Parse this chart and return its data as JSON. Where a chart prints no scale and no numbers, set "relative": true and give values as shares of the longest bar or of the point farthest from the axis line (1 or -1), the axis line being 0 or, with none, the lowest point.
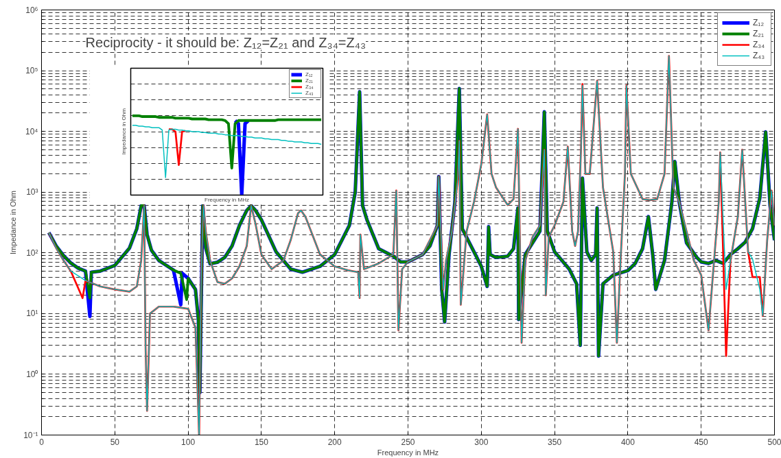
{
  "chart_data": [
    {
      "type": "line",
      "title": "Reciprocity - it should be: Z₁₂=Z₂₁ and Z₃₄=Z₄₃",
      "xlabel": "Frequency in MHz",
      "ylabel": "Impedance in Ohm",
      "log": "y",
      "grid": true,
      "legend": "top right",
      "xlim": [
        0,
        500
      ],
      "xticks": [
        0,
        50,
        100,
        150,
        200,
        250,
        300,
        350,
        400,
        450,
        500
      ],
      "ylim": [
        0.1,
        1000000
      ],
      "yticks": [
        {
          "value": 0.1,
          "label": "10⁻¹"
        },
        {
          "value": 1,
          "label": "10⁰"
        },
        {
          "value": 10,
          "label": "10¹"
        },
        {
          "value": 100,
          "label": "10²"
        },
        {
          "value": 1000,
          "label": "10³"
        },
        {
          "value": 10000,
          "label": "10⁴"
        },
        {
          "value": 100000,
          "label": "10⁵"
        },
        {
          "value": 1000000,
          "label": "10⁶"
        }
      ],
      "series": [
        {
          "name": "Z₁₂",
          "color": "#0000ff",
          "x": [
            5,
            10,
            15,
            20,
            25,
            30,
            33,
            34,
            40,
            50,
            60,
            65,
            68,
            70,
            72,
            75,
            80,
            90,
            95,
            96,
            100,
            105,
            107,
            108,
            109,
            110,
            112,
            115,
            120,
            125,
            130,
            135,
            140,
            143,
            146,
            150,
            160,
            170,
            178,
            190,
            200,
            210,
            214,
            217,
            219,
            222,
            230,
            240,
            245,
            250,
            260,
            265,
            270,
            271,
            273,
            275,
            278,
            282,
            285,
            287,
            295,
            300,
            304,
            305,
            306,
            310,
            318,
            322,
            325,
            325.5,
            330,
            340,
            343,
            345,
            350,
            360,
            365,
            367.5,
            369,
            372,
            375,
            378,
            379,
            380,
            383,
            390,
            400,
            405,
            410,
            414,
            417,
            419,
            425,
            430,
            432,
            435,
            440,
            447,
            450,
            455,
            460,
            465,
            470,
            475,
            480,
            485,
            490,
            494,
            497,
            500
          ],
          "values": [
            215,
            130,
            90,
            68,
            56,
            50,
            9,
            48,
            50,
            62,
            120,
            250,
            600,
            600,
            200,
            110,
            75,
            52,
            14,
            46,
            38,
            25,
            8,
            0.5,
            20,
            600,
            120,
            66,
            70,
            84,
            130,
            283,
            500,
            600,
            500,
            350,
            104,
            54,
            48,
            60,
            94,
            283,
            1000,
            45000,
            600,
            350,
            117,
            88,
            71,
            71,
            94,
            130,
            283,
            1800,
            25,
            7.3,
            94,
            690,
            51000,
            250,
            104,
            60,
            28,
            270,
            94,
            84,
            88,
            117,
            550,
            8,
            94,
            227,
            21000,
            230,
            104,
            54,
            31,
            3,
            1700,
            104,
            75,
            94,
            550,
            2,
            31,
            43,
            51,
            67,
            117,
            395,
            90,
            25,
            75,
            690,
            3200,
            690,
            146,
            84,
            71,
            67,
            75,
            67,
            94,
            117,
            150,
            250,
            800,
            9800,
            600,
            162
          ]
        },
        {
          "name": "Z₂₁",
          "color": "#008000",
          "x": [
            5,
            10,
            15,
            20,
            25,
            30,
            33,
            34,
            40,
            50,
            60,
            65,
            68,
            70,
            72,
            75,
            80,
            90,
            95,
            99,
            100,
            105,
            107,
            108,
            109,
            110,
            112,
            115,
            120,
            125,
            130,
            135,
            140,
            143,
            146,
            150,
            160,
            170,
            178,
            190,
            200,
            210,
            214,
            217,
            219,
            222,
            230,
            240,
            245,
            250,
            260,
            265,
            270,
            271,
            273,
            275,
            278,
            282,
            285,
            287,
            295,
            300,
            304,
            305,
            306,
            310,
            318,
            322,
            325,
            325.5,
            330,
            340,
            343,
            345,
            350,
            360,
            365,
            367.5,
            369,
            372,
            375,
            378,
            379,
            380,
            383,
            390,
            400,
            405,
            410,
            414,
            417,
            419,
            425,
            430,
            432,
            435,
            440,
            447,
            450,
            455,
            460,
            465,
            470,
            475,
            480,
            485,
            490,
            494,
            497,
            500
          ],
          "values": [
            215,
            130,
            90,
            68,
            56,
            50,
            18,
            48,
            50,
            62,
            120,
            250,
            600,
            600,
            200,
            110,
            75,
            52,
            46,
            17,
            38,
            25,
            8,
            0.5,
            20,
            600,
            120,
            66,
            70,
            84,
            130,
            283,
            500,
            600,
            500,
            350,
            104,
            54,
            48,
            60,
            94,
            283,
            1000,
            45000,
            600,
            350,
            117,
            88,
            71,
            71,
            94,
            130,
            283,
            1800,
            25,
            7.3,
            94,
            690,
            51000,
            250,
            104,
            60,
            28,
            270,
            94,
            84,
            88,
            117,
            550,
            8,
            94,
            227,
            21000,
            230,
            104,
            54,
            31,
            3,
            1700,
            104,
            75,
            94,
            550,
            2,
            31,
            43,
            51,
            67,
            117,
            395,
            90,
            25,
            75,
            690,
            3200,
            690,
            146,
            84,
            71,
            67,
            75,
            67,
            94,
            117,
            150,
            250,
            800,
            9800,
            600,
            162
          ]
        },
        {
          "name": "Z₃₄",
          "color": "#ff0000",
          "x": [
            5,
            10,
            15,
            20,
            28,
            30,
            40,
            50,
            60,
            65,
            68,
            70,
            71,
            72,
            74,
            80,
            90,
            100,
            105,
            107.5,
            109,
            110.5,
            112,
            115,
            120,
            125,
            130,
            135,
            140,
            143,
            146,
            150,
            157,
            165,
            170,
            175,
            177,
            180,
            190,
            200,
            210,
            216,
            217,
            217.5,
            220,
            230,
            240,
            242,
            243.5,
            246,
            250,
            260,
            270,
            271,
            274,
            276,
            280,
            284,
            285,
            286,
            290,
            295,
            300,
            304,
            307,
            310,
            318,
            322,
            325,
            327.5,
            330,
            335,
            340,
            343,
            344,
            346,
            350,
            356,
            359,
            362,
            364,
            366,
            368,
            369,
            371,
            374,
            379,
            383,
            390,
            392.5,
            395,
            398,
            399,
            402,
            410,
            415,
            420,
            425,
            428,
            431,
            435,
            440,
            445,
            450,
            455,
            458,
            462,
            463,
            467,
            470,
            475,
            478,
            482,
            485,
            490,
            492,
            495,
            498,
            500
          ],
          "values": [
            215,
            120,
            75,
            50,
            18,
            35,
            28,
            25,
            23,
            28,
            75,
            600,
            2.7,
            0.25,
            10,
            13,
            13,
            12,
            5.9,
            0.1,
            50,
            600,
            227,
            75,
            33,
            31,
            38,
            60,
            130,
            600,
            300,
            94,
            54,
            75,
            163,
            450,
            500,
            395,
            94,
            60,
            51,
            48,
            18,
            200,
            54,
            67,
            94,
            1060,
            5.3,
            54,
            71,
            94,
            283,
            1800,
            25,
            75,
            227,
            1660,
            7000,
            14,
            227,
            690,
            2900,
            19000,
            2000,
            1200,
            614,
            767,
            11000,
            3.3,
            75,
            182,
            283,
            5000,
            20,
            182,
            283,
            690,
            5600,
            227,
            130,
            227,
            5000,
            60000,
            2000,
            2000,
            68000,
            1200,
            104,
            3.3,
            75,
            2000,
            57000,
            2000,
            767,
            740,
            767,
            2000,
            175000,
            1200,
            690,
            227,
            75,
            43,
            5.3,
            43,
            690,
            4500,
            2,
            75,
            395,
            5000,
            104,
            40,
            40,
            9.2,
            160,
            1060,
            283
          ]
        },
        {
          "name": "Z₄₃",
          "color": "#00c0c0",
          "x": [
            5,
            10,
            15,
            20,
            30,
            40,
            50,
            60,
            65,
            68,
            70,
            71,
            72,
            74,
            80,
            90,
            100,
            105,
            107.5,
            109,
            110.5,
            112,
            115,
            120,
            125,
            130,
            135,
            140,
            143,
            146,
            150,
            157,
            165,
            170,
            175,
            177,
            180,
            190,
            200,
            210,
            216,
            217,
            217.5,
            220,
            230,
            240,
            242,
            243.5,
            246,
            250,
            260,
            270,
            271,
            274,
            276,
            280,
            284,
            285,
            286,
            290,
            295,
            300,
            304,
            307,
            310,
            318,
            322,
            325,
            327.5,
            330,
            335,
            340,
            343,
            344,
            346,
            350,
            356,
            359,
            362,
            364,
            366,
            368,
            369,
            371,
            374,
            379,
            383,
            390,
            392.5,
            395,
            398,
            399,
            402,
            410,
            415,
            420,
            425,
            428,
            431,
            435,
            440,
            445,
            450,
            455,
            458,
            462,
            463,
            467,
            470,
            475,
            478,
            482,
            485,
            490,
            492,
            495,
            498,
            500
          ],
          "values": [
            215,
            120,
            75,
            50,
            35,
            28,
            25,
            23,
            28,
            75,
            600,
            2.7,
            0.25,
            10,
            13,
            13,
            12,
            5.9,
            0.1,
            50,
            600,
            227,
            75,
            33,
            31,
            38,
            60,
            130,
            600,
            300,
            94,
            54,
            75,
            163,
            450,
            500,
            395,
            94,
            60,
            51,
            48,
            18,
            200,
            54,
            67,
            94,
            1060,
            5.3,
            54,
            71,
            94,
            283,
            1800,
            25,
            75,
            227,
            1660,
            7000,
            14,
            227,
            690,
            2900,
            19000,
            2000,
            1200,
            614,
            767,
            11000,
            3.3,
            75,
            182,
            283,
            5000,
            20,
            182,
            283,
            690,
            5600,
            227,
            130,
            227,
            5000,
            57000,
            2000,
            2000,
            68000,
            1200,
            104,
            3.3,
            75,
            2000,
            57000,
            2000,
            767,
            740,
            767,
            2000,
            175000,
            1200,
            690,
            227,
            75,
            43,
            5.3,
            43,
            690,
            4500,
            25,
            75,
            395,
            5000,
            104,
            80,
            25,
            9.2,
            160,
            1060,
            283
          ]
        }
      ]
    },
    {
      "type": "line",
      "relative": true,
      "xlabel": "Frequency in MHz",
      "ylabel": "Impedance in Ohm",
      "grid": true,
      "legend": "top right",
      "categories": [
        null,
        null,
        null,
        null,
        null,
        null,
        null,
        null,
        null,
        null,
        null,
        null,
        null,
        null,
        null,
        null,
        null,
        null,
        null,
        null,
        null,
        null,
        null,
        null,
        null,
        null,
        null,
        null,
        null,
        null,
        null,
        null,
        null,
        null,
        null,
        null,
        null,
        null,
        null,
        null,
        null,
        null,
        null,
        null,
        null,
        null,
        null,
        null,
        null,
        null,
        null,
        null,
        null,
        null,
        null,
        null,
        null,
        null
      ],
      "series": [
        {
          "name": "Z₁₂",
          "color": "#0000ff",
          "values": [
            null,
            null,
            null,
            null,
            null,
            null,
            null,
            null,
            null,
            null,
            null,
            null,
            null,
            null,
            null,
            null,
            null,
            null,
            null,
            null,
            null,
            null,
            null,
            null,
            null,
            null,
            null,
            null,
            null,
            null,
            null,
            0.94,
            0.9,
            0.0,
            0.9,
            0.94,
            null,
            null,
            null,
            null,
            null,
            null,
            null,
            null,
            null,
            null,
            null,
            null,
            null,
            null,
            null,
            null,
            null,
            null,
            null,
            null,
            null,
            null
          ]
        },
        {
          "name": "Z₂₁",
          "color": "#008000",
          "values": [
            1.0,
            1.0,
            1.0,
            0.99,
            0.99,
            0.99,
            0.99,
            0.99,
            0.98,
            0.98,
            0.98,
            0.98,
            0.98,
            0.97,
            0.97,
            0.97,
            0.97,
            0.97,
            0.96,
            0.96,
            0.96,
            0.96,
            0.96,
            0.95,
            0.95,
            0.95,
            0.95,
            0.95,
            0.94,
            0.9,
            0.34,
            0.9,
            0.94,
            0.94,
            0.94,
            0.94,
            0.94,
            0.94,
            0.94,
            0.94,
            0.94,
            0.94,
            0.94,
            0.94,
            0.95,
            0.95,
            0.95,
            0.95,
            0.95,
            0.95,
            0.95,
            0.95,
            0.95,
            0.95,
            0.95,
            0.95,
            0.95,
            0.95
          ]
        },
        {
          "name": "Z₃₄",
          "color": "#ff0000",
          "values": [
            null,
            null,
            null,
            null,
            null,
            null,
            null,
            null,
            null,
            null,
            null,
            0.83,
            0.83,
            0.8,
            0.38,
            0.8,
            0.81,
            null,
            null,
            null,
            null,
            null,
            null,
            null,
            null,
            null,
            null,
            null,
            null,
            null,
            null,
            null,
            null,
            null,
            null,
            null,
            null,
            null,
            null,
            null,
            null,
            null,
            null,
            null,
            null,
            null,
            null,
            null,
            null,
            null,
            null,
            null,
            null,
            null,
            null,
            null,
            null,
            null
          ]
        },
        {
          "name": "Z₄₃",
          "color": "#00c0c0",
          "values": [
            0.88,
            0.88,
            0.87,
            0.87,
            0.86,
            0.86,
            0.85,
            0.85,
            0.85,
            0.82,
            0.22,
            0.82,
            0.83,
            0.83,
            0.82,
            0.82,
            0.81,
            0.81,
            0.8,
            0.8,
            0.8,
            0.79,
            0.79,
            0.78,
            0.78,
            0.78,
            0.77,
            0.77,
            0.76,
            0.76,
            0.75,
            0.75,
            0.75,
            0.74,
            0.74,
            0.73,
            0.73,
            0.72,
            0.72,
            0.72,
            0.71,
            0.71,
            0.7,
            0.7,
            0.7,
            0.69,
            0.69,
            0.68,
            0.68,
            0.67,
            0.67,
            0.67,
            0.66,
            0.66,
            0.65,
            0.65,
            0.65,
            0.64
          ]
        }
      ]
    }
  ]
}
